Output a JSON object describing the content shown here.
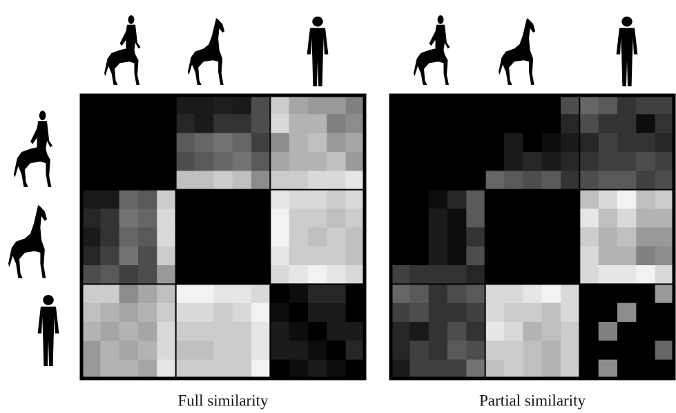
{
  "chart_data": [
    {
      "type": "heatmap",
      "title": "Full similarity",
      "values": [
        [
          0,
          0,
          0,
          0,
          0,
          0.1,
          0.1,
          0.12,
          0.1,
          0.3,
          0.8,
          0.65,
          0.6,
          0.6,
          0.5
        ],
        [
          0,
          0,
          0,
          0,
          0,
          0.15,
          0.1,
          0.2,
          0.2,
          0.3,
          0.85,
          0.7,
          0.7,
          0.5,
          0.55
        ],
        [
          0,
          0,
          0,
          0,
          0,
          0.35,
          0.4,
          0.45,
          0.4,
          0.25,
          0.55,
          0.7,
          0.75,
          0.6,
          0.65
        ],
        [
          0,
          0,
          0,
          0,
          0,
          0.3,
          0.35,
          0.4,
          0.45,
          0.35,
          0.65,
          0.7,
          0.7,
          0.75,
          0.6
        ],
        [
          0,
          0,
          0,
          0,
          0,
          0.75,
          0.75,
          0.8,
          0.75,
          0.55,
          0.8,
          0.8,
          0.85,
          0.85,
          0.9
        ],
        [
          0.1,
          0.1,
          0.4,
          0.35,
          0.8,
          0,
          0,
          0,
          0,
          0,
          0.9,
          0.85,
          0.85,
          0.8,
          0.85
        ],
        [
          0.15,
          0.2,
          0.45,
          0.4,
          0.85,
          0,
          0,
          0,
          0,
          0,
          0.95,
          0.8,
          0.8,
          0.75,
          0.8
        ],
        [
          0.1,
          0.2,
          0.4,
          0.35,
          0.85,
          0,
          0,
          0,
          0,
          0,
          0.95,
          0.8,
          0.75,
          0.8,
          0.75
        ],
        [
          0.15,
          0.25,
          0.45,
          0.3,
          0.8,
          0,
          0,
          0,
          0,
          0,
          0.9,
          0.8,
          0.8,
          0.8,
          0.75
        ],
        [
          0.3,
          0.35,
          0.25,
          0.3,
          0.6,
          0,
          0,
          0,
          0,
          0,
          0.85,
          0.9,
          0.95,
          0.9,
          0.85
        ],
        [
          0.8,
          0.8,
          0.55,
          0.65,
          0.75,
          0.95,
          0.95,
          0.9,
          0.9,
          0.85,
          0,
          0.05,
          0.15,
          0.15,
          0
        ],
        [
          0.75,
          0.7,
          0.65,
          0.7,
          0.8,
          0.85,
          0.85,
          0.8,
          0.85,
          0.95,
          0.05,
          0,
          0.1,
          0.1,
          0
        ],
        [
          0.7,
          0.65,
          0.7,
          0.65,
          0.85,
          0.8,
          0.8,
          0.8,
          0.8,
          0.9,
          0.1,
          0.05,
          0,
          0.1,
          0.1
        ],
        [
          0.6,
          0.7,
          0.65,
          0.7,
          0.85,
          0.75,
          0.75,
          0.8,
          0.8,
          0.9,
          0.1,
          0.1,
          0.05,
          0,
          0.15
        ],
        [
          0.6,
          0.7,
          0.7,
          0.65,
          0.9,
          0.8,
          0.8,
          0.8,
          0.8,
          0.95,
          0,
          0.05,
          0.1,
          0.05,
          0
        ]
      ]
    },
    {
      "type": "heatmap",
      "title": "Partial similarity",
      "values": [
        [
          0,
          0,
          0,
          0,
          0,
          0,
          0,
          0,
          0,
          0.3,
          0.4,
          0.35,
          0.2,
          0.25,
          0.25
        ],
        [
          0,
          0,
          0,
          0,
          0,
          0,
          0,
          0,
          0,
          0.15,
          0.3,
          0.2,
          0.2,
          0.05,
          0.2
        ],
        [
          0,
          0,
          0,
          0,
          0,
          0,
          0.1,
          0,
          0.05,
          0.1,
          0.15,
          0.25,
          0.2,
          0.2,
          0.15
        ],
        [
          0,
          0,
          0,
          0,
          0,
          0,
          0.1,
          0.15,
          0.1,
          0.15,
          0.2,
          0.25,
          0.25,
          0.3,
          0.25
        ],
        [
          0,
          0,
          0,
          0,
          0,
          0.4,
          0.35,
          0.3,
          0.35,
          0.2,
          0.3,
          0.35,
          0.35,
          0.25,
          0.3
        ],
        [
          0,
          0,
          0.05,
          0.15,
          0.35,
          0,
          0,
          0,
          0,
          0,
          0.75,
          0.85,
          0.95,
          0.75,
          0.8
        ],
        [
          0,
          0,
          0.1,
          0.05,
          0.35,
          0,
          0,
          0,
          0,
          0,
          0.9,
          0.75,
          0.85,
          0.7,
          0.7
        ],
        [
          0,
          0,
          0.1,
          0.05,
          0.2,
          0,
          0,
          0,
          0,
          0,
          0.8,
          0.7,
          0.75,
          0.6,
          0.6
        ],
        [
          0,
          0,
          0.1,
          0.05,
          0.3,
          0,
          0,
          0,
          0,
          0,
          0.85,
          0.7,
          0.7,
          0.5,
          0.55
        ],
        [
          0.25,
          0.2,
          0.2,
          0.2,
          0.15,
          0,
          0,
          0,
          0,
          0,
          0.85,
          0.9,
          0.9,
          0.95,
          0.85
        ],
        [
          0.4,
          0.35,
          0.2,
          0.3,
          0.35,
          0.85,
          0.85,
          0.9,
          0.95,
          0.85,
          0,
          0,
          0,
          0,
          0.6
        ],
        [
          0.25,
          0.3,
          0.2,
          0.2,
          0.25,
          0.85,
          0.8,
          0.8,
          0.75,
          0.85,
          0,
          0,
          0.55,
          0,
          0
        ],
        [
          0.15,
          0.1,
          0.2,
          0.3,
          0.2,
          0.9,
          0.85,
          0.7,
          0.75,
          0.8,
          0,
          0.5,
          0,
          0,
          0
        ],
        [
          0.15,
          0.25,
          0.2,
          0.35,
          0.3,
          0.8,
          0.8,
          0.75,
          0.7,
          0.8,
          0,
          0,
          0,
          0,
          0.4
        ],
        [
          0.1,
          0.25,
          0.25,
          0.25,
          0.45,
          0.75,
          0.8,
          0.75,
          0.7,
          0.8,
          0,
          0.55,
          0,
          0,
          0
        ]
      ]
    }
  ]
}
